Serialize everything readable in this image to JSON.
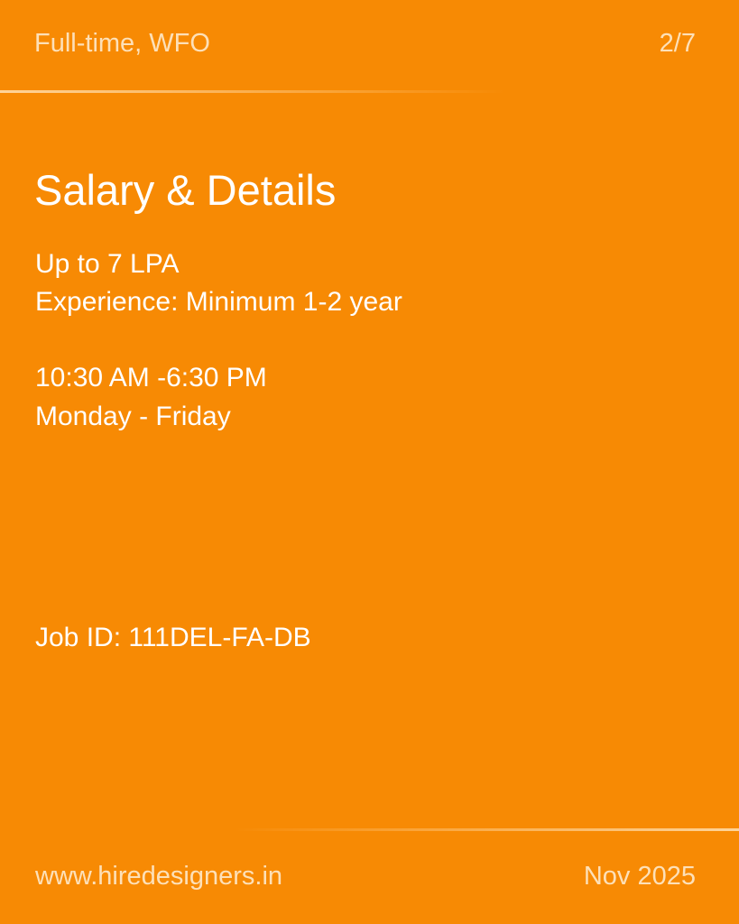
{
  "header": {
    "employment_type": "Full-time, WFO",
    "page_indicator": "2/7"
  },
  "main": {
    "title": "Salary & Details",
    "details": [
      "Up to 7 LPA",
      "Experience: Minimum 1-2 year",
      "10:30 AM -6:30 PM",
      "Monday - Friday"
    ],
    "job_id": "Job ID: 111DEL-FA-DB"
  },
  "footer": {
    "website": "www.hiredesigners.in",
    "date": "Nov 2025"
  },
  "colors": {
    "background": "#f78a04",
    "text": "#ffffff",
    "muted_text": "#fde0b8"
  }
}
